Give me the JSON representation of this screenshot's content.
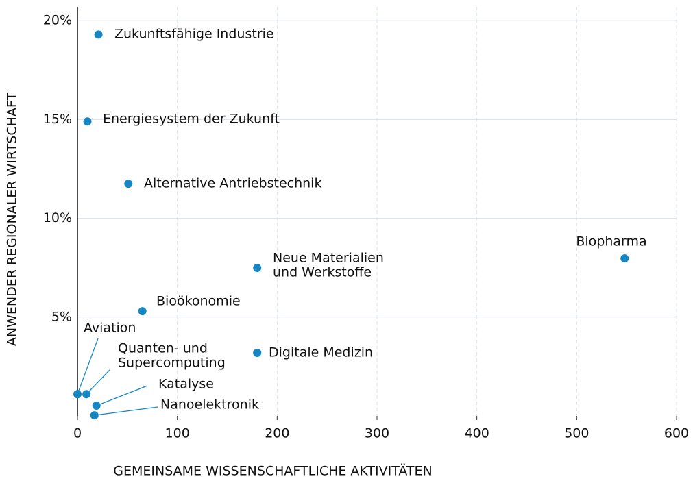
{
  "chart_data": {
    "type": "scatter",
    "xlabel": "GEMEINSAME WISSENSCHAFTLICHE AKTIVITÄTEN",
    "ylabel": "ANWENDER REGIONALER WIRTSCHAFT",
    "labels": [
      "Zukunftsfähige Industrie",
      "Energiesystem der Zukunft",
      "Alternative Antriebstechnik",
      "Biopharma",
      [
        "Neue Materialien",
        "und Werkstoffe"
      ],
      "Bioökonomie",
      "Digitale Medizin",
      "Aviation",
      [
        "Quanten- und",
        "Supercomputing"
      ],
      "Katalyse",
      "Nanoelektronik"
    ],
    "x": [
      21,
      10,
      51,
      548,
      180,
      65,
      180,
      0,
      9,
      19,
      17
    ],
    "values": [
      19.3,
      14.9,
      11.75,
      7.97,
      7.49,
      5.3,
      3.19,
      1.1,
      1.1,
      0.52,
      0.03
    ],
    "color": "#1787c4",
    "xlim": [
      0,
      600
    ],
    "xticks": [
      0,
      100,
      200,
      300,
      400,
      500,
      600
    ],
    "ylim": [
      0,
      20.7
    ],
    "yticks": [
      {
        "value": 5,
        "label": "5%"
      },
      {
        "value": 10,
        "label": "10%"
      },
      {
        "value": 15,
        "label": "15%"
      },
      {
        "value": 20,
        "label": "20%"
      }
    ],
    "grid": true
  }
}
